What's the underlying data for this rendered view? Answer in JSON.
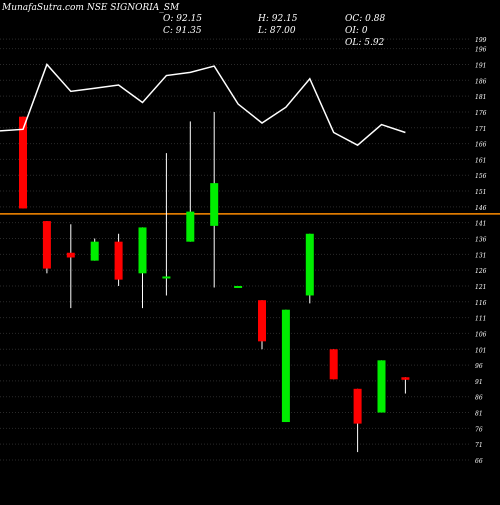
{
  "header": {
    "title": "MunafaSutra.com NSE SIGNORIA_SM",
    "open": "O: 92.15",
    "high": "H: 92.15",
    "change": "OC: 0.88",
    "close": "C: 91.35",
    "low": "L: 87.00",
    "oi": "OI: 0",
    "ol": "OL: 5.92"
  },
  "colors": {
    "background": "#000000",
    "bullish": "#00ee00",
    "bearish": "#ff0000",
    "line": "#ffffff",
    "reference_line": "#ff8c00",
    "grid": "#2a2a2a",
    "text": "#ffffff"
  },
  "chart_data": {
    "type": "candlestick",
    "ylim": [
      66,
      200
    ],
    "y_ticks": [
      199,
      196,
      191,
      186,
      181,
      176,
      171,
      166,
      161,
      156,
      151,
      146,
      141,
      136,
      131,
      126,
      121,
      116,
      111,
      106,
      101,
      96,
      91,
      86,
      81,
      76,
      71,
      66
    ],
    "y_tick_labels": [
      "199",
      "196",
      "191",
      "186",
      "181",
      "176",
      "171",
      "166",
      "161",
      "156",
      "151",
      "146",
      "141",
      "136",
      "131",
      "126",
      "121",
      "116",
      "111",
      "106",
      "101",
      "96",
      "91",
      "86",
      "81",
      "76",
      "71",
      "66"
    ],
    "reference_level": 143.8,
    "candles": [
      {
        "open": 174.5,
        "close": 145.5,
        "high": 174.5,
        "low": 145.5
      },
      {
        "open": 141.5,
        "close": 126.5,
        "high": 141.5,
        "low": 125.0
      },
      {
        "open": 131.5,
        "close": 130.0,
        "high": 140.5,
        "low": 114.0
      },
      {
        "open": 129.0,
        "close": 135.0,
        "high": 136.0,
        "low": 129.0
      },
      {
        "open": 135.0,
        "close": 123.0,
        "high": 137.5,
        "low": 121.0
      },
      {
        "open": 125.0,
        "close": 139.5,
        "high": 139.5,
        "low": 114.0
      },
      {
        "open": 124.0,
        "close": 124.0,
        "high": 163.0,
        "low": 118.0
      },
      {
        "open": 135.0,
        "close": 144.5,
        "high": 173.0,
        "low": 135.0
      },
      {
        "open": 140.0,
        "close": 153.5,
        "high": 176.0,
        "low": 120.5
      },
      {
        "open": 121.0,
        "close": 121.0,
        "high": 121.0,
        "low": 121.0
      },
      {
        "open": 116.5,
        "close": 103.5,
        "high": 116.5,
        "low": 101.0
      },
      {
        "open": 78.0,
        "close": 113.5,
        "high": 113.5,
        "low": 78.0
      },
      {
        "open": 118.0,
        "close": 137.5,
        "high": 137.5,
        "low": 115.5
      },
      {
        "open": 101.0,
        "close": 91.5,
        "high": 101.0,
        "low": 91.5
      },
      {
        "open": 88.5,
        "close": 77.5,
        "high": 88.5,
        "low": 68.5
      },
      {
        "open": 81.0,
        "close": 97.5,
        "high": 97.5,
        "low": 81.0
      },
      {
        "open": 92.15,
        "close": 91.35,
        "high": 92.15,
        "low": 87.0
      }
    ],
    "line_series": [
      170.5,
      191.0,
      182.5,
      183.5,
      184.5,
      179.0,
      187.5,
      188.5,
      190.5,
      178.5,
      172.5,
      177.5,
      186.5,
      169.5,
      165.5,
      172.0,
      169.5
    ]
  }
}
